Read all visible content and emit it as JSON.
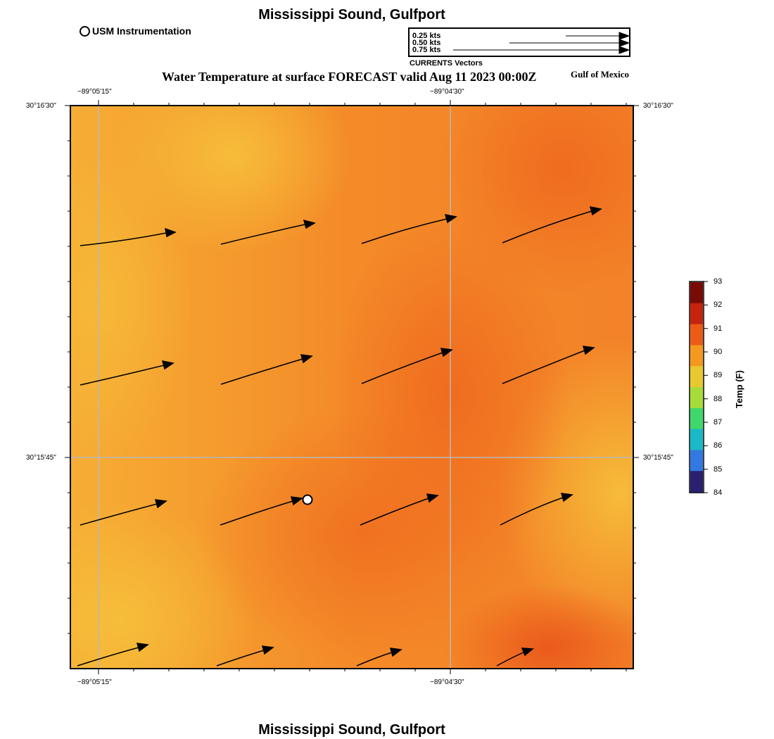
{
  "header": {
    "title": "Mississippi Sound, Gulfport",
    "subtitle": "Water Temperature at surface FORECAST valid Aug 11 2023 00:00Z",
    "region_label": "Gulf of Mexico"
  },
  "footer": {
    "title": "Mississippi Sound, Gulfport"
  },
  "station_legend": {
    "label": "USM Instrumentation",
    "icon": "open-circle-icon"
  },
  "vector_legend": {
    "caption": "CURRENTS Vectors",
    "rows": [
      {
        "label": "0.25 kts",
        "speed_kts": 0.25
      },
      {
        "label": "0.50 kts",
        "speed_kts": 0.5
      },
      {
        "label": "0.75 kts",
        "speed_kts": 0.75
      }
    ]
  },
  "axes": {
    "top_lon_labels": [
      "−89°05'15\"",
      "−89°04'30\""
    ],
    "bottom_lon_labels": [
      "−89°05'15\"",
      "−89°04'30\""
    ],
    "left_lat_labels": [
      "30°16'30\"",
      "30°15'45\""
    ],
    "right_lat_labels": [
      "30°16'30\"",
      "30°15'45\""
    ]
  },
  "colorbar": {
    "title": "Temp (F)",
    "ticks": [
      "93",
      "92",
      "91",
      "90",
      "89",
      "88",
      "87",
      "86",
      "85",
      "84"
    ],
    "range": [
      84,
      93
    ],
    "colors": [
      "#7a0a05",
      "#c6240e",
      "#ee5b17",
      "#f5981e",
      "#e7c82d",
      "#a6dc3a",
      "#3ed86a",
      "#1ab9c7",
      "#3378e0",
      "#2a2070"
    ]
  },
  "field_colors": {
    "warm": "#f06e1f",
    "mid": "#f59d30",
    "cool": "#f6bd3a"
  },
  "chart_data": {
    "type": "map",
    "variable": "Water Temperature at surface",
    "units": "F",
    "current_vectors_kts": [
      {
        "speed": 0.7,
        "direction_deg": 81
      },
      {
        "speed": 0.7,
        "direction_deg": 76
      },
      {
        "speed": 0.7,
        "direction_deg": 75
      },
      {
        "speed": 0.8,
        "direction_deg": 70
      },
      {
        "speed": 0.7,
        "direction_deg": 74
      },
      {
        "speed": 0.7,
        "direction_deg": 73
      },
      {
        "speed": 0.7,
        "direction_deg": 68
      },
      {
        "speed": 0.7,
        "direction_deg": 68
      },
      {
        "speed": 0.65,
        "direction_deg": 72
      },
      {
        "speed": 0.65,
        "direction_deg": 71
      },
      {
        "speed": 0.6,
        "direction_deg": 70
      },
      {
        "speed": 0.55,
        "direction_deg": 65
      },
      {
        "speed": 0.55,
        "direction_deg": 72
      },
      {
        "speed": 0.45,
        "direction_deg": 72
      },
      {
        "speed": 0.35,
        "direction_deg": 68
      },
      {
        "speed": 0.3,
        "direction_deg": 63
      }
    ],
    "station_marker": {
      "label": "USM Instrumentation"
    }
  }
}
